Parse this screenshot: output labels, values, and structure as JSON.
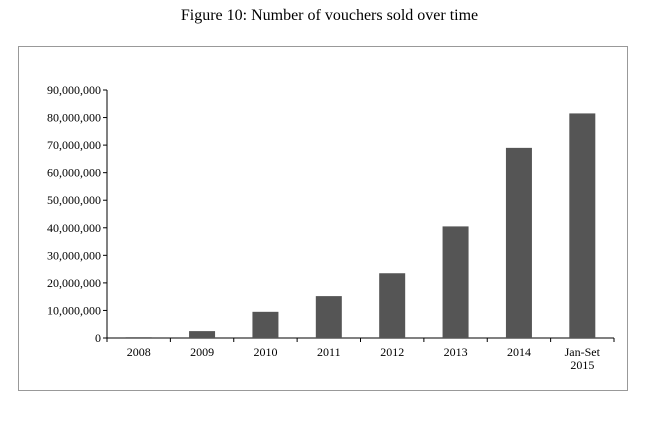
{
  "figure": {
    "caption": "Figure 10: Number of vouchers sold over time"
  },
  "chart_data": {
    "type": "bar",
    "title": "",
    "xlabel": "",
    "ylabel": "",
    "categories": [
      "2008",
      "2009",
      "2010",
      "2011",
      "2012",
      "2013",
      "2014",
      "Jan-Set 2015"
    ],
    "values": [
      300000,
      2500000,
      9500000,
      15200000,
      23500000,
      40500000,
      69000000,
      81500000
    ],
    "ylim": [
      0,
      90000000
    ],
    "yticks": [
      0,
      10000000,
      20000000,
      30000000,
      40000000,
      50000000,
      60000000,
      70000000,
      80000000,
      90000000
    ],
    "ytick_labels": [
      "0",
      "10,000,000",
      "20,000,000",
      "30,000,000",
      "40,000,000",
      "50,000,000",
      "60,000,000",
      "70,000,000",
      "80,000,000",
      "90,000,000"
    ],
    "xtick_labels": [
      [
        "2008"
      ],
      [
        "2009"
      ],
      [
        "2010"
      ],
      [
        "2011"
      ],
      [
        "2012"
      ],
      [
        "2013"
      ],
      [
        "2014"
      ],
      [
        "Jan-Set",
        "2015"
      ]
    ],
    "bar_color": "#555555",
    "grid": false,
    "legend": "none"
  }
}
